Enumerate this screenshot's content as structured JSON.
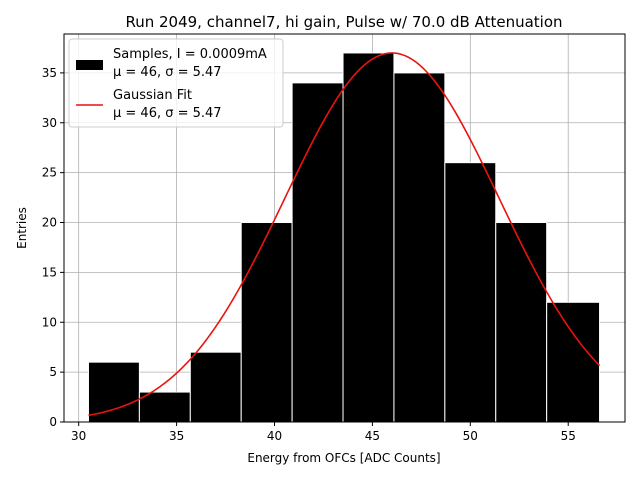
{
  "chart_data": {
    "type": "bar",
    "title": "Run 2049, channel7, hi gain, Pulse w/ 70.0 dB Attenuation",
    "xlabel": "Energy from OFCs [ADC Counts]",
    "ylabel": "Entries",
    "xlim": [
      29.25,
      57.9
    ],
    "ylim": [
      0,
      38.9
    ],
    "xticks": [
      30,
      35,
      40,
      45,
      50,
      55
    ],
    "yticks": [
      0,
      5,
      10,
      15,
      20,
      25,
      30,
      35
    ],
    "grid": true,
    "legend_position": "top-left",
    "bins": [
      {
        "left": 30.5,
        "right": 33.1,
        "value": 6
      },
      {
        "left": 33.1,
        "right": 35.7,
        "value": 3
      },
      {
        "left": 35.7,
        "right": 38.3,
        "value": 7
      },
      {
        "left": 38.3,
        "right": 40.9,
        "value": 20
      },
      {
        "left": 40.9,
        "right": 43.5,
        "value": 34
      },
      {
        "left": 43.5,
        "right": 46.1,
        "value": 37
      },
      {
        "left": 46.1,
        "right": 48.7,
        "value": 35
      },
      {
        "left": 48.7,
        "right": 51.3,
        "value": 26
      },
      {
        "left": 51.3,
        "right": 53.9,
        "value": 20
      },
      {
        "left": 53.9,
        "right": 56.6,
        "value": 12
      }
    ],
    "fit": {
      "name": "Gaussian Fit",
      "mu": 46,
      "sigma": 5.47,
      "amplitude": 37,
      "x_range": [
        30.5,
        56.6
      ],
      "color": "#e8140f"
    },
    "legend": [
      {
        "label_line1": "Samples, I = 0.0009mA",
        "label_line2": "μ = 46, σ = 5.47",
        "kind": "bar",
        "color": "#000000"
      },
      {
        "label_line1": "Gaussian Fit",
        "label_line2": "μ = 46, σ = 5.47",
        "kind": "line",
        "color": "#e8140f"
      }
    ]
  }
}
